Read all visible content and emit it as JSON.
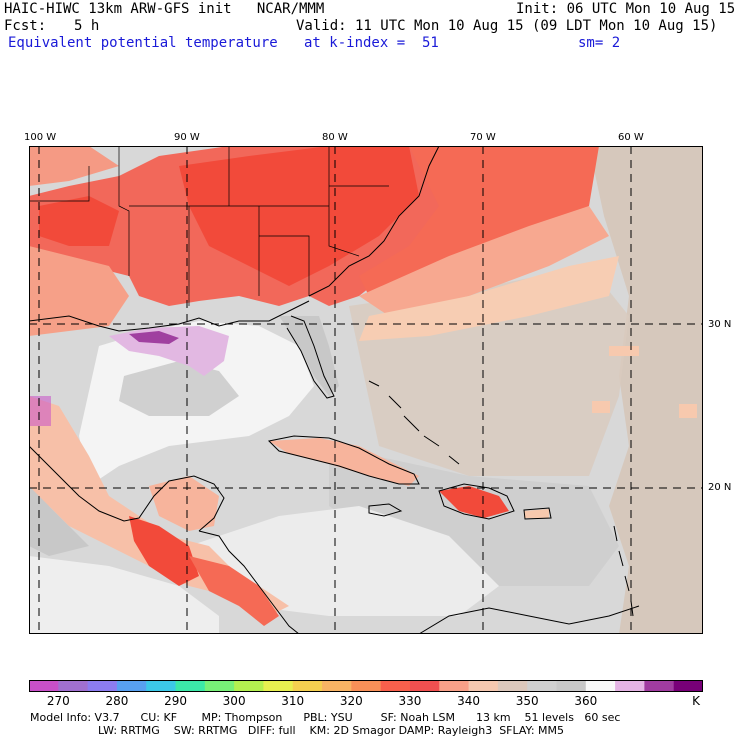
{
  "header": {
    "line1_left": "HAIC-HIWC 13km ARW-GFS init   NCAR/MMM",
    "line1_right": "Init: 06 UTC Mon 10 Aug 15",
    "fcst_label": "Fcst:",
    "fcst_value": "5 h",
    "valid": "Valid: 11 UTC Mon 10 Aug 15 (09 LDT Mon 10 Aug 15)",
    "field": "Equivalent potential temperature",
    "level": "at k-index =  51",
    "smooth": "sm= 2"
  },
  "map": {
    "lon_labels": [
      "100 W",
      "90 W",
      "80 W",
      "70 W",
      "60 W"
    ],
    "lat_labels": [
      "30 N",
      "20 N"
    ],
    "colors": {
      "c350": "#d8d8d8",
      "c345": "#c8c8c8",
      "c340": "#f7c9ae",
      "c335": "#f8a285",
      "c330": "#fa6a55",
      "c325": "#f24a3a",
      "c355": "#ebebeb",
      "c360": "#f8f8f8",
      "c365": "#e2b8e2",
      "c370": "#a040a0",
      "east": "#d6c8bc"
    }
  },
  "colorbar": {
    "colors": [
      "#c850c8",
      "#a070d0",
      "#8c7cf0",
      "#58a0f0",
      "#3cc8e8",
      "#3ce8a8",
      "#78f078",
      "#b4f050",
      "#e8f050",
      "#f5d050",
      "#f8b464",
      "#f89058",
      "#f8604c",
      "#f05050",
      "#f8a088",
      "#f5c8b0",
      "#dcc8bc",
      "#d0d0d0",
      "#c8c8c8",
      "#f8f8f8",
      "#e4b4e4",
      "#a03ca0",
      "#780078"
    ],
    "ticks": [
      "270",
      "280",
      "290",
      "300",
      "310",
      "320",
      "330",
      "340",
      "350",
      "360"
    ],
    "unit": "K"
  },
  "footer": {
    "line1": "Model Info: V3.7      CU: KF       MP: Thompson      PBL: YSU        SF: Noah LSM      13 km    51 levels   60 sec",
    "line2": "LW: RRTMG    SW: RRTMG   DIFF: full    KM: 2D Smagor DAMP: Rayleigh3  SFLAY: MM5"
  }
}
